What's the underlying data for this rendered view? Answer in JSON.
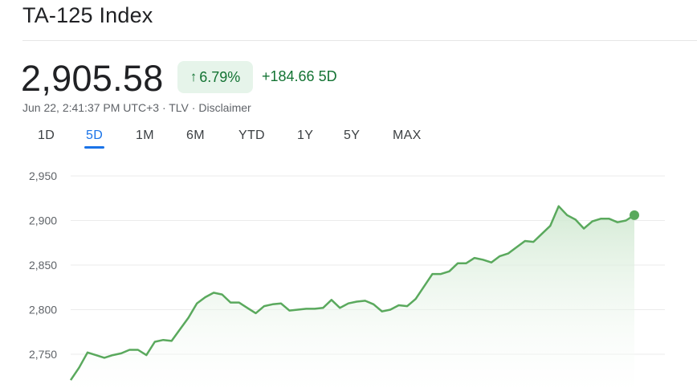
{
  "header": {
    "title": "TA-125 Index",
    "price": "2,905.58",
    "change_percent": "6.79%",
    "change_abs": "+184.66",
    "change_period": "5D",
    "timestamp": "Jun 22, 2:41:37 PM UTC+3",
    "exchange": "TLV",
    "disclaimer": "Disclaimer",
    "up_arrow_icon": "arrow-up-icon"
  },
  "tabs": [
    {
      "label": "1D",
      "active": false
    },
    {
      "label": "5D",
      "active": true
    },
    {
      "label": "1M",
      "active": false
    },
    {
      "label": "6M",
      "active": false
    },
    {
      "label": "YTD",
      "active": false
    },
    {
      "label": "1Y",
      "active": false
    },
    {
      "label": "5Y",
      "active": false
    },
    {
      "label": "MAX",
      "active": false
    }
  ],
  "colors": {
    "line": "#5aa95d",
    "fill_top": "#cfe8d0",
    "positive": "#137333",
    "accent": "#1a73e8"
  },
  "chart_data": {
    "type": "area",
    "title": "",
    "xlabel": "",
    "ylabel": "",
    "yticks": [
      {
        "value": 2950,
        "label": "2,950"
      },
      {
        "value": 2900,
        "label": "2,900"
      },
      {
        "value": 2850,
        "label": "2,850"
      },
      {
        "value": 2800,
        "label": "2,800"
      },
      {
        "value": 2750,
        "label": "2,750"
      }
    ],
    "ylim": [
      2719,
      2955
    ],
    "grid": true,
    "legend": "none",
    "series": [
      {
        "values": [
          2721,
          2735,
          2752,
          2749,
          2746,
          2749,
          2751,
          2755,
          2755,
          2749,
          2764,
          2766,
          2765,
          2778,
          2791,
          2807,
          2814,
          2819,
          2817,
          2808,
          2808,
          2802,
          2796,
          2804,
          2806,
          2807,
          2799,
          2800,
          2801,
          2801,
          2802,
          2811,
          2802,
          2807,
          2809,
          2810,
          2806,
          2798,
          2800,
          2805,
          2804,
          2812,
          2826,
          2840,
          2840,
          2843,
          2852,
          2852,
          2858,
          2856,
          2853,
          2860,
          2863,
          2870,
          2877,
          2876,
          2885,
          2894,
          2916,
          2906,
          2901,
          2891,
          2899,
          2902,
          2902,
          2898,
          2900,
          2906
        ]
      }
    ]
  }
}
